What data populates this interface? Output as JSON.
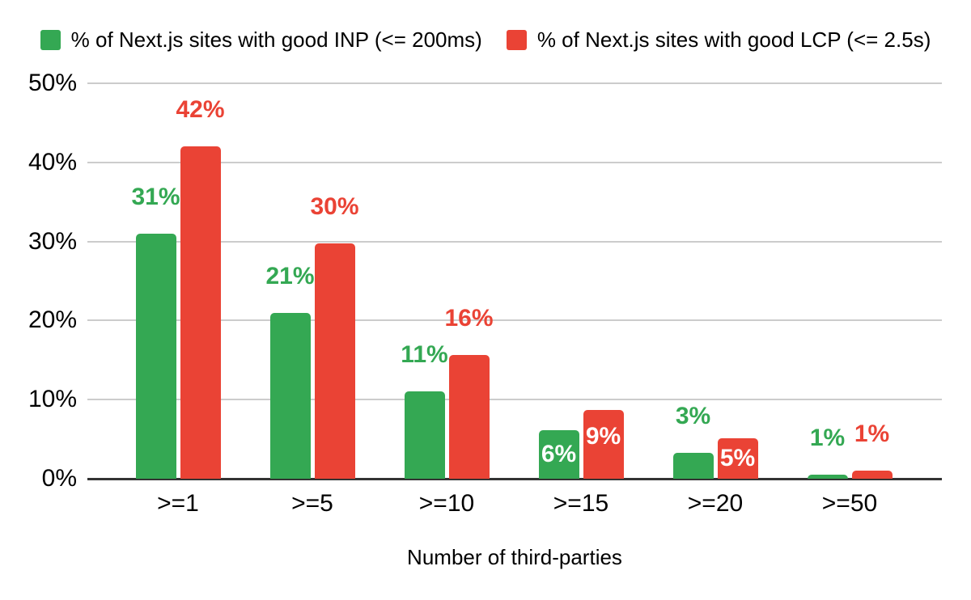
{
  "colors": {
    "background": "#ffffff",
    "gridline": "#cccccc",
    "axis_line": "#333333",
    "text": "#000000",
    "inside_label_text": "#ffffff",
    "inp_green": "#34a853",
    "lcp_red": "#ea4335"
  },
  "chart_data": {
    "type": "bar",
    "title": "",
    "xlabel": "Number of third-parties",
    "ylabel": "",
    "ylim": [
      0,
      50
    ],
    "ytick_labels": [
      "0%",
      "10%",
      "20%",
      "30%",
      "40%",
      "50%"
    ],
    "grid": true,
    "legend_position": "top",
    "categories": [
      ">=1",
      ">=5",
      ">=10",
      ">=15",
      ">=20",
      ">=50"
    ],
    "series": [
      {
        "id": "inp",
        "name": "% of Next.js sites with good INP (<= 200ms)",
        "color": "#34a853",
        "values": [
          31,
          21,
          11,
          6.1,
          3.3,
          0.5
        ],
        "data_labels": [
          "31%",
          "21%",
          "11%",
          "6%",
          "3%",
          "1%"
        ],
        "label_placement": [
          "above",
          "above",
          "above",
          "inside",
          "above",
          "above"
        ]
      },
      {
        "id": "lcp",
        "name": "% of Next.js sites with good LCP (<= 2.5s)",
        "color": "#ea4335",
        "values": [
          42,
          29.8,
          15.7,
          8.7,
          5.1,
          1
        ],
        "data_labels": [
          "42%",
          "30%",
          "16%",
          "9%",
          "5%",
          "1%"
        ],
        "label_placement": [
          "above",
          "above",
          "above",
          "inside",
          "inside",
          "above"
        ]
      }
    ]
  }
}
